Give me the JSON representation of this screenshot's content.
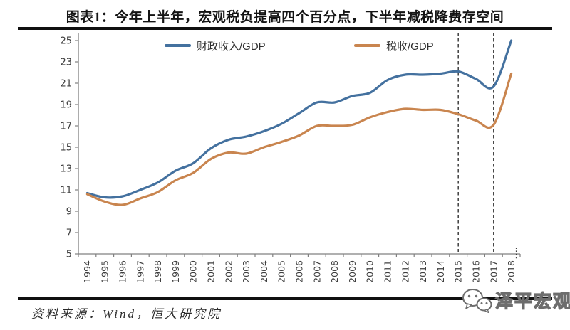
{
  "header": {
    "title": "图表1：今年上半年，宏观税负提高四个百分点，下半年减税降费存空间"
  },
  "footer": {
    "source_label": "资料来源：Wind，恒大研究院",
    "watermark": "泽平宏观"
  },
  "chart_data": {
    "type": "line",
    "title": "图表1：今年上半年，宏观税负提高四个百分点，下半年减税降费存空间",
    "categories": [
      "1994",
      "1995",
      "1996",
      "1997",
      "1998",
      "1999",
      "2000",
      "2001",
      "2002",
      "2003",
      "2004",
      "2005",
      "2006",
      "2007",
      "2008",
      "2009",
      "2010",
      "2011",
      "2012",
      "2013",
      "2014",
      "2015",
      "2016",
      "2017",
      "2018"
    ],
    "series": [
      {
        "name": "财政收入/GDP",
        "color": "#44719F",
        "values": [
          10.7,
          10.3,
          10.4,
          11.0,
          11.7,
          12.8,
          13.5,
          14.9,
          15.7,
          16.0,
          16.5,
          17.2,
          18.2,
          19.2,
          19.2,
          19.8,
          20.1,
          21.3,
          21.8,
          21.8,
          21.9,
          22.1,
          21.4,
          20.7,
          25.0
        ]
      },
      {
        "name": "税收/GDP",
        "color": "#C9854F",
        "values": [
          10.6,
          9.9,
          9.6,
          10.2,
          10.8,
          11.9,
          12.6,
          13.9,
          14.5,
          14.4,
          15.0,
          15.5,
          16.1,
          17.0,
          17.0,
          17.1,
          17.8,
          18.3,
          18.6,
          18.5,
          18.5,
          18.1,
          17.5,
          17.1,
          21.9
        ]
      }
    ],
    "xlabel": "",
    "ylabel": "",
    "ylim": [
      5,
      25
    ],
    "ytick_step": 2,
    "grid": false,
    "legend_position": "top",
    "axis_color": "#808080",
    "tick_label_color": "#3f3f3f",
    "annotations": {
      "vline_years": [
        "2015",
        "2017"
      ],
      "vline_color": "#3f3f3f",
      "axis_stub_year": "2018"
    }
  }
}
